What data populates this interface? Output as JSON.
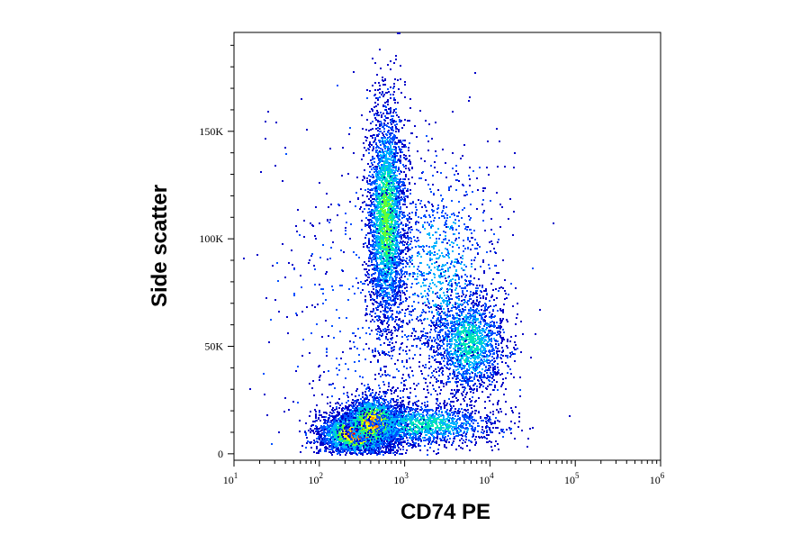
{
  "chart_data": {
    "type": "scatter",
    "subtype": "flow-cytometry density dot plot",
    "xlabel": "CD74 PE",
    "ylabel": "Side scatter",
    "x_scale": "log",
    "xlim": [
      10,
      1000000
    ],
    "ylim": [
      -3000,
      196000
    ],
    "x_ticks": [
      {
        "value": 10,
        "base": "10",
        "exp": "1"
      },
      {
        "value": 100,
        "base": "10",
        "exp": "2"
      },
      {
        "value": 1000,
        "base": "10",
        "exp": "3"
      },
      {
        "value": 10000,
        "base": "10",
        "exp": "4"
      },
      {
        "value": 100000,
        "base": "10",
        "exp": "5"
      },
      {
        "value": 1000000,
        "base": "10",
        "exp": "6"
      }
    ],
    "y_ticks": [
      {
        "value": 0,
        "label": "0"
      },
      {
        "value": 50000,
        "label": "50K"
      },
      {
        "value": 100000,
        "label": "100K"
      },
      {
        "value": 150000,
        "label": "150K"
      }
    ],
    "grid": false,
    "legend": "none",
    "density_colors": [
      "#0000c8",
      "#0050ff",
      "#00b4ff",
      "#00e6b4",
      "#64ff32",
      "#ffff00",
      "#ff8c00",
      "#ff0000"
    ],
    "series": [
      {
        "cx": 280,
        "cy": 10000,
        "sx": 0.22,
        "sy": 5000,
        "n": 3600,
        "peak": 7
      },
      {
        "cx": 420,
        "cy": 15000,
        "sx": 0.18,
        "sy": 6000,
        "n": 1700,
        "peak": 6
      },
      {
        "cx": 1600,
        "cy": 14000,
        "sx": 0.45,
        "sy": 5000,
        "n": 1400,
        "peak": 3
      },
      {
        "cx": 600,
        "cy": 110000,
        "sx": 0.11,
        "sy": 26000,
        "n": 3000,
        "peak": 4
      },
      {
        "cx": 5500,
        "cy": 52000,
        "sx": 0.22,
        "sy": 12000,
        "n": 1600,
        "peak": 3
      },
      {
        "cx": 2500,
        "cy": 85000,
        "sx": 0.35,
        "sy": 28000,
        "n": 1000,
        "peak": 2
      },
      {
        "cx": 400,
        "cy": 60000,
        "sx": 0.6,
        "sy": 45000,
        "n": 600,
        "peak": 1
      }
    ]
  }
}
